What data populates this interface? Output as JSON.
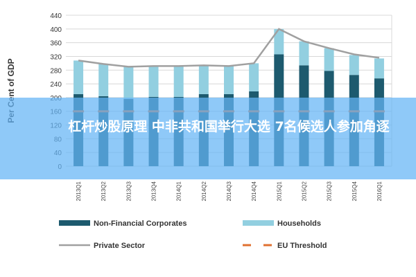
{
  "chart_data": {
    "type": "bar",
    "ylabel": "Per Cent of GDP",
    "ylim": [
      0,
      440
    ],
    "yticks": [
      0,
      40,
      80,
      120,
      160,
      200,
      240,
      280,
      320,
      360,
      400,
      440
    ],
    "categories": [
      "2013 Q1",
      "2013 Q2",
      "2013 Q3",
      "2013 Q4",
      "2014 Q1",
      "2014 Q2",
      "2014 Q3",
      "2014 Q4",
      "2015 Q1",
      "2015 Q2",
      "2015 Q3",
      "2015 Q4",
      "2016 Q1"
    ],
    "series": [
      {
        "name": "Non-Financial Corporates",
        "type": "stacked-bar",
        "color": "#1d5a6e",
        "values": [
          210,
          204,
          196,
          202,
          202,
          210,
          210,
          218,
          326,
          294,
          278,
          266,
          256
        ]
      },
      {
        "name": "Households",
        "type": "stacked-bar",
        "color": "#92cfe0",
        "values": [
          98,
          94,
          94,
          90,
          90,
          84,
          82,
          82,
          74,
          70,
          66,
          58,
          58
        ]
      },
      {
        "name": "Private Sector",
        "type": "line",
        "color": "#a0a0a0",
        "values": [
          308,
          298,
          290,
          292,
          292,
          294,
          292,
          300,
          400,
          364,
          344,
          326,
          316
        ]
      },
      {
        "name": "EU Threshold",
        "type": "dashed-line",
        "color": "#e07030",
        "values": [
          160,
          160,
          160,
          160,
          160,
          160,
          160,
          160,
          160,
          160,
          160,
          160,
          160
        ]
      }
    ],
    "legend": "bottom",
    "grid": true
  },
  "overlay": {
    "headline": "杠杆炒股原理 中非共和国举行大选 7名候选人参加角逐"
  }
}
